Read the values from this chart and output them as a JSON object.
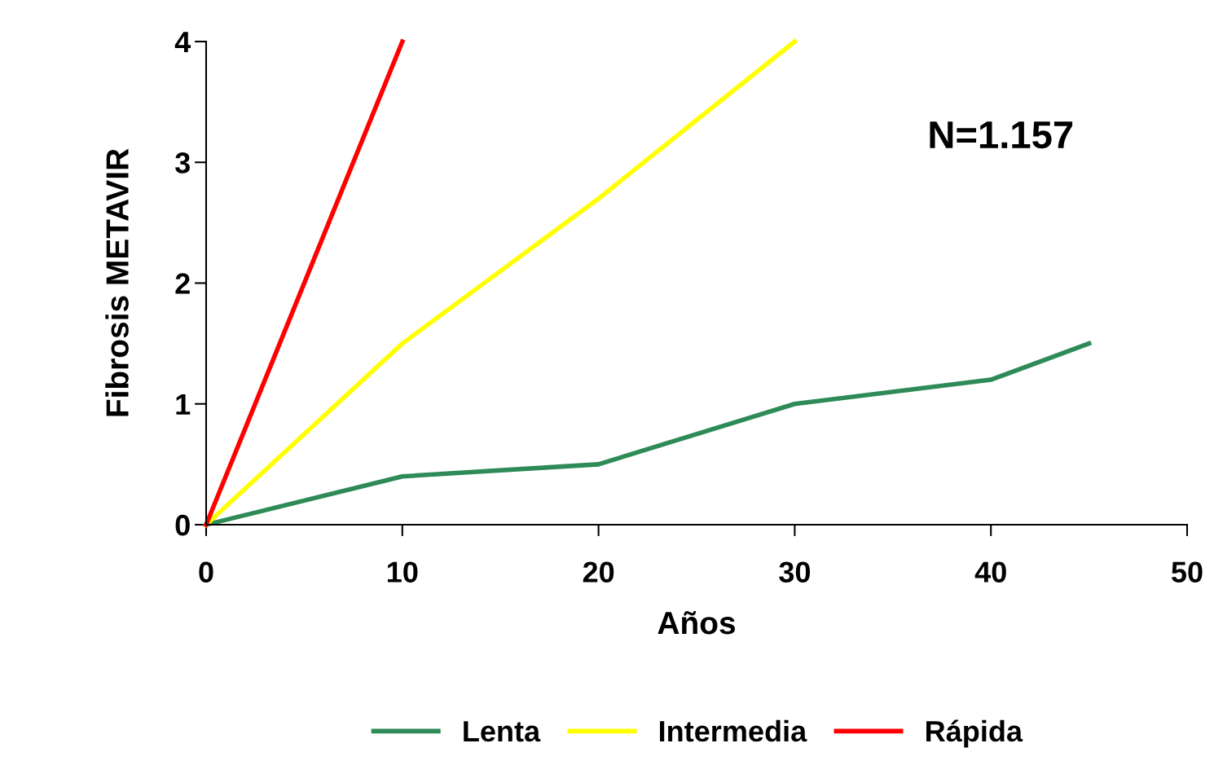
{
  "chart_data": {
    "type": "line",
    "xlabel": "Años",
    "ylabel": "Fibrosis METAVIR",
    "xlim": [
      0,
      50
    ],
    "xticks": [
      0,
      10,
      20,
      30,
      40,
      50
    ],
    "ylim": [
      0,
      4
    ],
    "yticks": [
      0,
      1,
      2,
      3,
      4
    ],
    "grid": false,
    "legend": "bottom",
    "marker": "none",
    "line_style": "solid",
    "annotations": [
      "N=1.157"
    ],
    "series": [
      {
        "name": "Lenta",
        "color": "#2e8b57",
        "x": [
          0,
          10,
          20,
          30,
          40,
          45
        ],
        "values": [
          0,
          0.4,
          0.5,
          1.0,
          1.2,
          1.5
        ]
      },
      {
        "name": "Intermedia",
        "color": "#ffff00",
        "x": [
          0,
          10,
          20,
          30
        ],
        "values": [
          0,
          1.5,
          2.7,
          4.0
        ]
      },
      {
        "name": "Rápida",
        "color": "#ff0000",
        "x": [
          0,
          10
        ],
        "values": [
          0,
          4.0
        ]
      }
    ]
  }
}
